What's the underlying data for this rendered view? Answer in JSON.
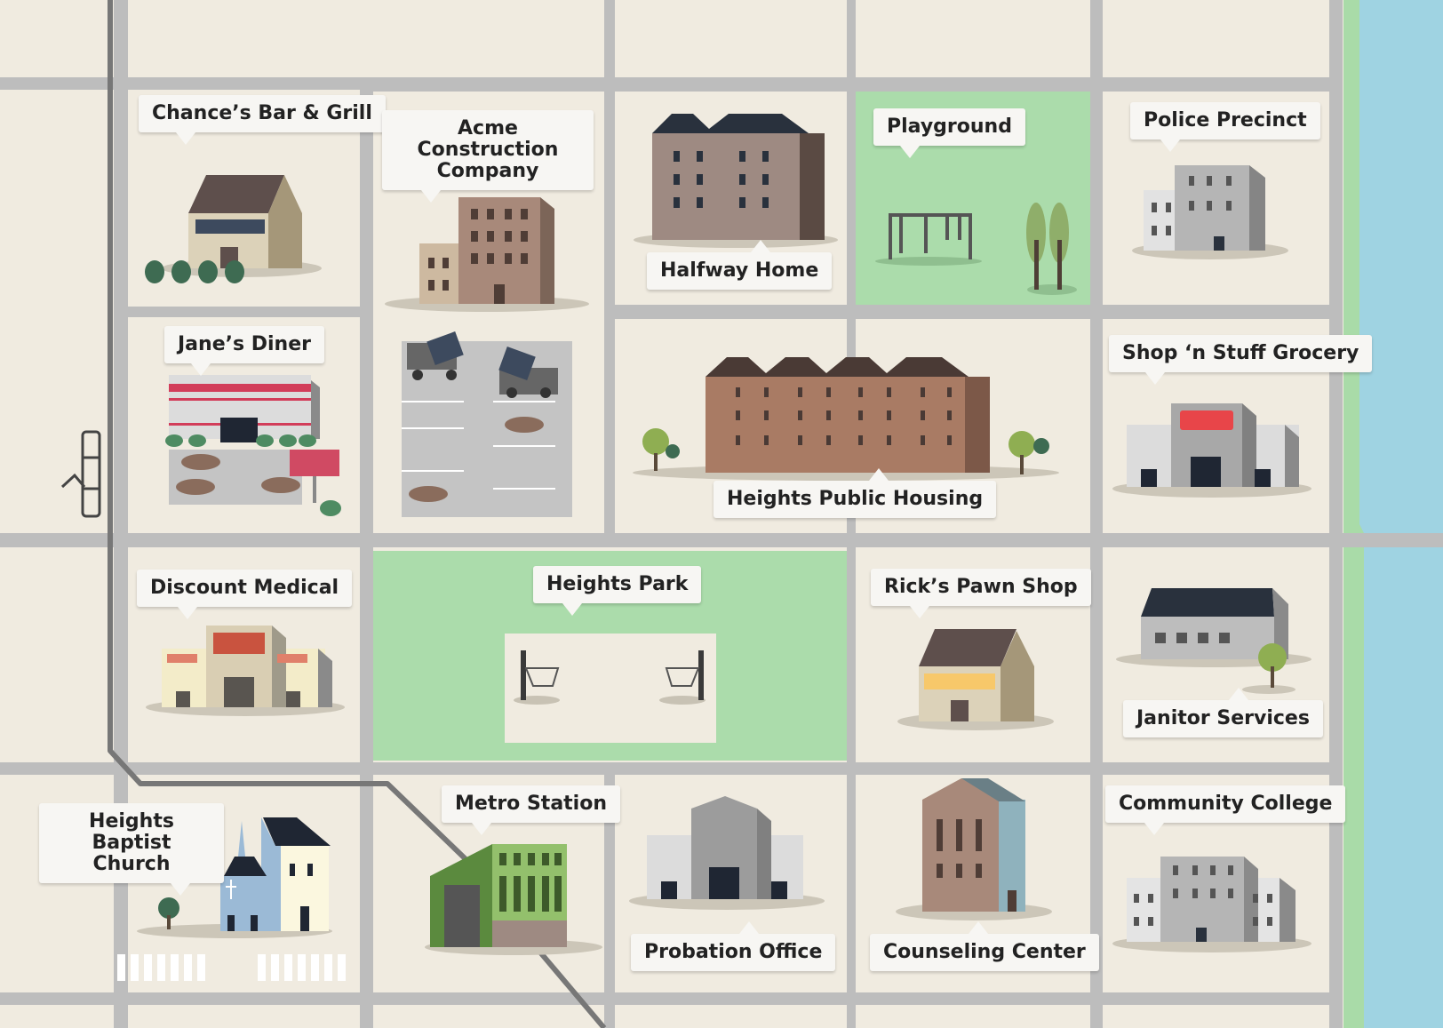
{
  "colors": {
    "background": "#f0ebe0",
    "road": "#bdbdbd",
    "transit_line": "#777777",
    "park": "#abdcab",
    "water": "#9fd3e2",
    "shore": "#a9dba8",
    "label_bg": "#f7f6f3"
  },
  "places": [
    {
      "id": "chances-bar-grill",
      "label": "Chance’s Bar & Grill"
    },
    {
      "id": "acme-construction",
      "label": "Acme Construction Company"
    },
    {
      "id": "halfway-home",
      "label": "Halfway Home"
    },
    {
      "id": "playground",
      "label": "Playground"
    },
    {
      "id": "police-precinct",
      "label": "Police Precinct"
    },
    {
      "id": "janes-diner",
      "label": "Jane’s Diner"
    },
    {
      "id": "heights-public-housing",
      "label": "Heights Public Housing"
    },
    {
      "id": "shop-n-stuff",
      "label": "Shop ‘n Stuff Grocery"
    },
    {
      "id": "discount-medical",
      "label": "Discount Medical"
    },
    {
      "id": "heights-park",
      "label": "Heights Park"
    },
    {
      "id": "ricks-pawn-shop",
      "label": "Rick’s Pawn Shop"
    },
    {
      "id": "janitor-services",
      "label": "Janitor Services"
    },
    {
      "id": "heights-baptist-church",
      "label": "Heights Baptist Church"
    },
    {
      "id": "metro-station",
      "label": "Metro Station"
    },
    {
      "id": "probation-office",
      "label": "Probation Office"
    },
    {
      "id": "counseling-center",
      "label": "Counseling Center"
    },
    {
      "id": "community-college",
      "label": "Community College"
    }
  ]
}
